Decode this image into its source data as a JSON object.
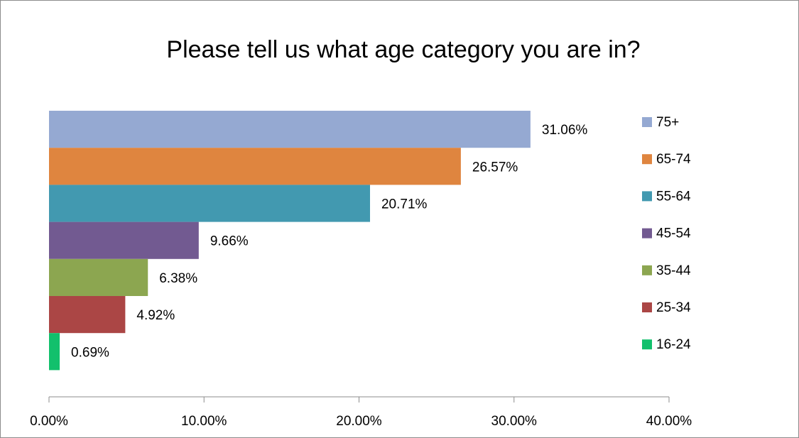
{
  "chart_data": {
    "type": "bar",
    "orientation": "horizontal",
    "title": "Please tell us what age category you are in?",
    "categories": [
      "75+",
      "65-74",
      "55-64",
      "45-54",
      "35-44",
      "25-34",
      "16-24"
    ],
    "values": [
      31.06,
      26.57,
      20.71,
      9.66,
      6.38,
      4.92,
      0.69
    ],
    "data_labels": [
      "31.06%",
      "26.57%",
      "20.71%",
      "9.66%",
      "6.38%",
      "4.92%",
      "0.69%"
    ],
    "colors": [
      "#95a9d2",
      "#df853f",
      "#4299b0",
      "#725a91",
      "#8ca650",
      "#ab4645",
      "#12c06c"
    ],
    "xlim": [
      0,
      40
    ],
    "x_ticks": [
      0,
      10,
      20,
      30,
      40
    ],
    "x_tick_labels": [
      "0.00%",
      "10.00%",
      "20.00%",
      "30.00%",
      "40.00%"
    ],
    "legend": {
      "placement": "right",
      "entries": [
        "75+",
        "65-74",
        "55-64",
        "45-54",
        "35-44",
        "25-34",
        "16-24"
      ]
    },
    "grid": false
  }
}
